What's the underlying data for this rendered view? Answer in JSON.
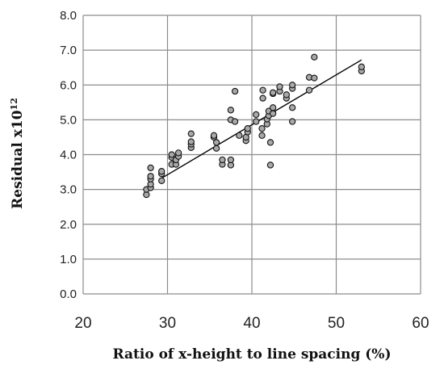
{
  "chart_data": {
    "type": "scatter",
    "title": "",
    "xlabel": "Ratio of x-height to line spacing (%)",
    "ylabel_main": "Residual x10",
    "ylabel_sup": "12",
    "xlim": [
      20,
      60
    ],
    "ylim": [
      0,
      8
    ],
    "x_ticks": [
      "20",
      "30",
      "40",
      "50",
      "60"
    ],
    "y_ticks": [
      "0.0",
      "1.0",
      "2.0",
      "3.0",
      "4.0",
      "5.0",
      "6.0",
      "7.0",
      "8.0"
    ],
    "grid": true,
    "legend": "none",
    "marker_color": "#a9a9a9",
    "marker_edge_color": "#111111",
    "trendline": {
      "x": [
        29.0,
        53.0
      ],
      "y": [
        3.28,
        6.72
      ]
    },
    "points": [
      [
        27.5,
        2.85
      ],
      [
        27.5,
        3.0
      ],
      [
        28.0,
        3.05
      ],
      [
        28.0,
        3.15
      ],
      [
        28.0,
        3.3
      ],
      [
        28.0,
        3.38
      ],
      [
        28.0,
        3.62
      ],
      [
        29.3,
        3.25
      ],
      [
        29.3,
        3.45
      ],
      [
        29.3,
        3.52
      ],
      [
        30.5,
        3.72
      ],
      [
        30.5,
        3.92
      ],
      [
        30.5,
        4.0
      ],
      [
        31.0,
        3.72
      ],
      [
        31.0,
        3.85
      ],
      [
        31.3,
        3.95
      ],
      [
        31.3,
        4.05
      ],
      [
        32.8,
        4.2
      ],
      [
        32.8,
        4.3
      ],
      [
        32.8,
        4.37
      ],
      [
        32.8,
        4.6
      ],
      [
        35.5,
        4.5
      ],
      [
        35.5,
        4.55
      ],
      [
        35.8,
        4.18
      ],
      [
        35.8,
        4.35
      ],
      [
        36.5,
        3.72
      ],
      [
        36.5,
        3.85
      ],
      [
        37.5,
        3.7
      ],
      [
        37.5,
        3.85
      ],
      [
        37.5,
        5.0
      ],
      [
        37.5,
        5.28
      ],
      [
        38.0,
        4.95
      ],
      [
        38.0,
        5.82
      ],
      [
        38.5,
        4.55
      ],
      [
        39.3,
        4.4
      ],
      [
        39.3,
        4.5
      ],
      [
        39.5,
        4.65
      ],
      [
        39.5,
        4.75
      ],
      [
        40.5,
        4.95
      ],
      [
        40.5,
        5.15
      ],
      [
        41.2,
        4.55
      ],
      [
        41.2,
        4.75
      ],
      [
        41.3,
        5.62
      ],
      [
        41.3,
        5.85
      ],
      [
        41.8,
        4.88
      ],
      [
        41.8,
        5.02
      ],
      [
        42.0,
        5.12
      ],
      [
        42.0,
        5.25
      ],
      [
        42.2,
        3.7
      ],
      [
        42.2,
        4.35
      ],
      [
        42.5,
        5.18
      ],
      [
        42.5,
        5.35
      ],
      [
        42.5,
        5.75
      ],
      [
        42.5,
        5.78
      ],
      [
        43.3,
        5.82
      ],
      [
        43.3,
        5.95
      ],
      [
        44.1,
        5.62
      ],
      [
        44.1,
        5.72
      ],
      [
        44.8,
        4.95
      ],
      [
        44.8,
        5.35
      ],
      [
        44.8,
        5.9
      ],
      [
        44.8,
        6.0
      ],
      [
        46.8,
        5.85
      ],
      [
        46.8,
        6.22
      ],
      [
        47.4,
        6.8
      ],
      [
        47.4,
        6.2
      ],
      [
        53.0,
        6.4
      ],
      [
        53.0,
        6.52
      ]
    ]
  }
}
